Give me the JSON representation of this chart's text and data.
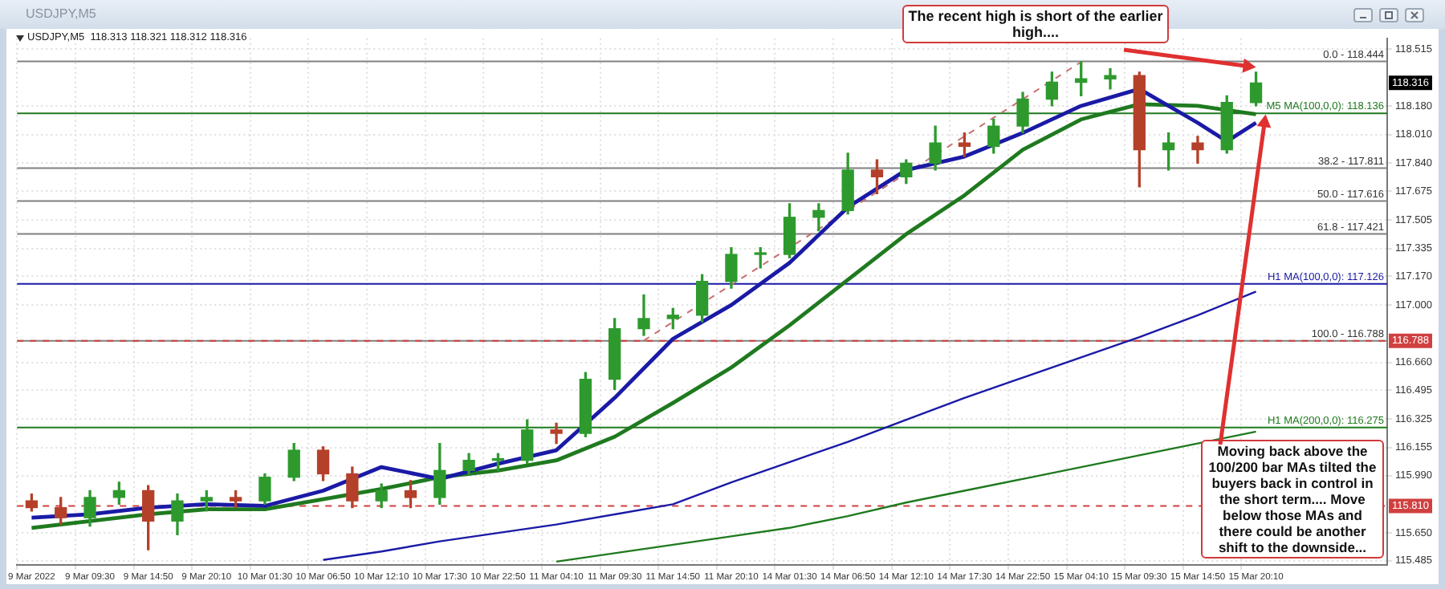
{
  "chart_data": {
    "type": "candlestick",
    "title": "USDJPY,M5",
    "subtitle": "USDJPY,M5  118.313 118.321 118.312 118.316",
    "categories": [
      "9 Mar 2022",
      null,
      "9 Mar 09:30",
      null,
      "9 Mar 14:50",
      null,
      "9 Mar 20:10",
      null,
      "10 Mar 01:30",
      null,
      "10 Mar 06:50",
      null,
      "10 Mar 12:10",
      null,
      "10 Mar 17:30",
      null,
      "10 Mar 22:50",
      null,
      "11 Mar 04:10",
      null,
      "11 Mar 09:30",
      null,
      "11 Mar 14:50",
      null,
      "11 Mar 20:10",
      null,
      "14 Mar 01:30",
      null,
      "14 Mar 06:50",
      null,
      "14 Mar 12:10",
      null,
      "14 Mar 17:30",
      null,
      "14 Mar 22:50",
      null,
      "15 Mar 04:10",
      null,
      "15 Mar 09:30",
      null,
      "15 Mar 14:50",
      null,
      "15 Mar 20:10",
      null,
      null,
      null,
      null
    ],
    "ohlc": [
      [
        115.84,
        115.88,
        115.78,
        115.8
      ],
      [
        115.8,
        115.86,
        115.7,
        115.74
      ],
      [
        115.74,
        115.9,
        115.69,
        115.86
      ],
      [
        115.86,
        115.95,
        115.82,
        115.9
      ],
      [
        115.9,
        115.93,
        115.55,
        115.72
      ],
      [
        115.72,
        115.88,
        115.64,
        115.84
      ],
      [
        115.84,
        115.9,
        115.78,
        115.86
      ],
      [
        115.86,
        115.9,
        115.8,
        115.84
      ],
      [
        115.84,
        116.0,
        115.82,
        115.98
      ],
      [
        115.98,
        116.18,
        115.96,
        116.14
      ],
      [
        116.14,
        116.16,
        115.96,
        116.0
      ],
      [
        116.0,
        116.04,
        115.8,
        115.84
      ],
      [
        115.84,
        115.94,
        115.8,
        115.9
      ],
      [
        115.9,
        115.96,
        115.8,
        115.86
      ],
      [
        115.86,
        116.18,
        115.82,
        116.02
      ],
      [
        116.02,
        116.12,
        116.0,
        116.08
      ],
      [
        116.08,
        116.12,
        116.02,
        116.08
      ],
      [
        116.08,
        116.32,
        116.06,
        116.26
      ],
      [
        116.26,
        116.3,
        116.18,
        116.24
      ],
      [
        116.24,
        116.6,
        116.22,
        116.56
      ],
      [
        116.56,
        116.92,
        116.5,
        116.86
      ],
      [
        116.86,
        117.06,
        116.82,
        116.92
      ],
      [
        116.92,
        116.98,
        116.86,
        116.94
      ],
      [
        116.94,
        117.18,
        116.9,
        117.14
      ],
      [
        117.14,
        117.34,
        117.1,
        117.3
      ],
      [
        117.3,
        117.34,
        117.22,
        117.3
      ],
      [
        117.3,
        117.6,
        117.28,
        117.52
      ],
      [
        117.52,
        117.6,
        117.44,
        117.56
      ],
      [
        117.56,
        117.9,
        117.54,
        117.8
      ],
      [
        117.8,
        117.86,
        117.66,
        117.76
      ],
      [
        117.76,
        117.86,
        117.72,
        117.84
      ],
      [
        117.84,
        118.06,
        117.8,
        117.96
      ],
      [
        117.96,
        118.02,
        117.88,
        117.94
      ],
      [
        117.94,
        118.1,
        117.9,
        118.06
      ],
      [
        118.06,
        118.26,
        118.02,
        118.22
      ],
      [
        118.22,
        118.38,
        118.18,
        118.32
      ],
      [
        118.32,
        118.44,
        118.24,
        118.34
      ],
      [
        118.34,
        118.4,
        118.28,
        118.36
      ],
      [
        118.36,
        118.38,
        117.7,
        117.92
      ],
      [
        117.92,
        118.02,
        117.8,
        117.96
      ],
      [
        117.96,
        118.0,
        117.84,
        117.92
      ],
      [
        117.92,
        118.24,
        117.9,
        118.2
      ],
      [
        118.2,
        118.38,
        118.18,
        118.316
      ],
      null,
      null,
      null,
      null
    ],
    "series": [
      {
        "type": "line",
        "color": "#1a1aa6",
        "values": [
          115.74,
          null,
          115.76,
          null,
          115.8,
          null,
          115.82,
          null,
          115.81,
          null,
          115.9,
          null,
          116.04,
          null,
          115.97,
          null,
          116.06,
          null,
          116.14,
          null,
          116.45,
          null,
          116.8,
          null,
          117.0,
          null,
          117.25,
          null,
          117.58,
          null,
          117.8,
          null,
          117.88,
          null,
          118.02,
          null,
          118.18,
          null,
          118.28,
          null,
          118.08,
          117.97,
          118.08,
          null,
          null,
          null,
          null
        ]
      },
      {
        "type": "line",
        "color": "#1f7a1f",
        "values": [
          115.68,
          null,
          115.72,
          null,
          115.76,
          null,
          115.79,
          null,
          115.79,
          null,
          115.85,
          null,
          115.91,
          null,
          115.98,
          null,
          116.02,
          null,
          116.08,
          null,
          116.22,
          null,
          116.42,
          null,
          116.63,
          null,
          116.88,
          null,
          117.15,
          null,
          117.42,
          null,
          117.65,
          null,
          117.92,
          null,
          118.1,
          null,
          118.19,
          null,
          118.18,
          null,
          118.13,
          null,
          null,
          null,
          null
        ]
      },
      {
        "type": "line",
        "color": "#1a1aa6",
        "values": [
          null,
          null,
          null,
          null,
          null,
          null,
          null,
          null,
          null,
          null,
          115.49,
          null,
          115.54,
          null,
          115.6,
          null,
          115.65,
          null,
          115.7,
          null,
          115.76,
          null,
          115.82,
          null,
          115.95,
          null,
          116.07,
          null,
          116.19,
          null,
          116.32,
          null,
          116.45,
          null,
          116.57,
          null,
          116.69,
          null,
          116.81,
          null,
          116.94,
          null,
          117.08,
          null,
          null,
          null,
          null
        ]
      },
      {
        "type": "line",
        "color": "#1f7a1f",
        "values": [
          null,
          null,
          null,
          null,
          null,
          null,
          null,
          null,
          null,
          null,
          null,
          null,
          null,
          null,
          null,
          null,
          null,
          null,
          115.48,
          null,
          115.53,
          null,
          115.58,
          null,
          115.63,
          null,
          115.68,
          null,
          115.75,
          null,
          115.83,
          null,
          115.9,
          null,
          115.97,
          null,
          116.04,
          null,
          116.11,
          null,
          116.18,
          null,
          116.25,
          null,
          null,
          null,
          null
        ]
      },
      {
        "type": "line",
        "color": "#c87070",
        "line_style": "dashed",
        "values": [
          null,
          null,
          null,
          null,
          null,
          null,
          null,
          null,
          null,
          null,
          null,
          null,
          null,
          null,
          null,
          null,
          null,
          null,
          null,
          null,
          null,
          116.79,
          null,
          null,
          null,
          null,
          null,
          null,
          null,
          null,
          null,
          null,
          null,
          null,
          null,
          null,
          118.44,
          null,
          null,
          null,
          null,
          null,
          null,
          null,
          null,
          null,
          null
        ]
      }
    ],
    "ylim": [
      115.46,
      118.58
    ],
    "yticks": [
      {
        "value": 115.485,
        "label": "115.485"
      },
      {
        "value": 115.65,
        "label": "115.650"
      },
      {
        "value": 115.99,
        "label": "115.990"
      },
      {
        "value": 116.155,
        "label": "116.155"
      },
      {
        "value": 116.325,
        "label": "116.325"
      },
      {
        "value": 116.495,
        "label": "116.495"
      },
      {
        "value": 116.66,
        "label": "116.660"
      },
      {
        "value": 117,
        "label": "117.000"
      },
      {
        "value": 117.17,
        "label": "117.170"
      },
      {
        "value": 117.335,
        "label": "117.335"
      },
      {
        "value": 117.505,
        "label": "117.505"
      },
      {
        "value": 117.675,
        "label": "117.675"
      },
      {
        "value": 117.84,
        "label": "117.840"
      },
      {
        "value": 118.01,
        "label": "118.010"
      },
      {
        "value": 118.18,
        "label": "118.180"
      },
      {
        "value": 118.515,
        "label": "118.515"
      }
    ],
    "grid": true,
    "ref_lines": [
      {
        "axis": "y",
        "value": 118.444,
        "color": "#808080",
        "line_style": "solid"
      },
      {
        "axis": "y",
        "value": 117.811,
        "color": "#808080",
        "line_style": "solid"
      },
      {
        "axis": "y",
        "value": 117.616,
        "color": "#808080",
        "line_style": "solid"
      },
      {
        "axis": "y",
        "value": 117.421,
        "color": "#808080",
        "line_style": "solid"
      },
      {
        "axis": "y",
        "value": 116.788,
        "color": "#808080",
        "line_style": "solid"
      },
      {
        "axis": "y",
        "value": 118.136,
        "label": "M5 MA(100,0,0): 118.136",
        "color": "#1f7a1f",
        "line_style": "solid"
      },
      {
        "axis": "y",
        "value": 117.126,
        "label": "H1 MA(100,0,0): 117.126",
        "color": "#1a1aa6",
        "line_style": "solid"
      },
      {
        "axis": "y",
        "value": 116.275,
        "label": "H1 MA(200,0,0): 116.275",
        "color": "#1f7a1f",
        "line_style": "solid"
      },
      {
        "axis": "y",
        "value": 116.788,
        "label": "116.788",
        "color": "#d04040",
        "line_style": "dashed"
      },
      {
        "axis": "y",
        "value": 115.81,
        "label": "115.810",
        "color": "#d04040",
        "line_style": "dashed"
      }
    ],
    "annotations": [
      {
        "text": "The recent high is short of the earlier high....",
        "x": "15 Mar 20:10",
        "y": 118.38
      },
      {
        "text": "Moving back above the 100/200 bar MAs tilted the buyers back in control in the short term.... Move below those MAs and there could be another shift to the downside...",
        "x": "15 Mar 20:10",
        "y": 118.13
      },
      {
        "text": "0.0 - 118.444",
        "y": 118.444
      },
      {
        "text": "38.2 - 117.811",
        "y": 117.811
      },
      {
        "text": "50.0 - 117.616",
        "y": 117.616
      },
      {
        "text": "61.8 - 117.421",
        "y": 117.421
      },
      {
        "text": "100.0 - 116.788",
        "y": 116.788
      },
      {
        "text": "118.316",
        "y": 118.316
      }
    ]
  }
}
